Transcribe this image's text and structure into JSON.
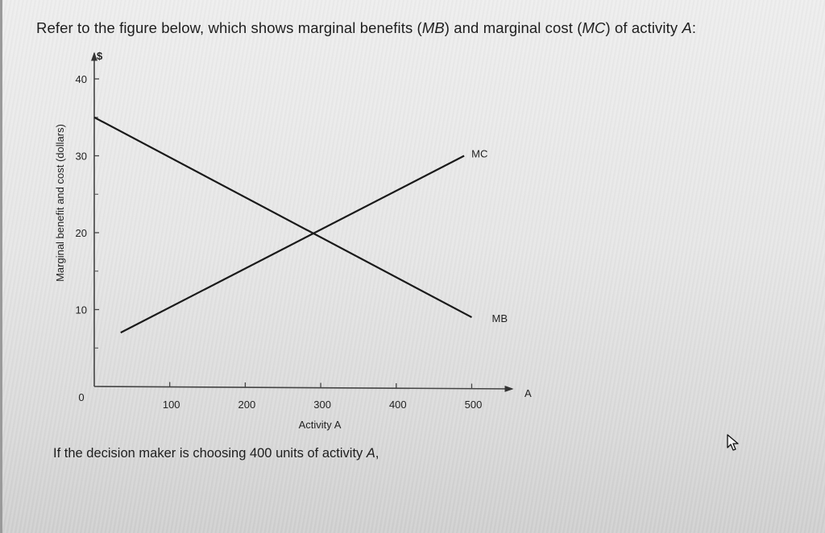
{
  "question": {
    "prefix": "Refer to the figure below, which shows marginal benefits (",
    "mb_abbr": "MB",
    "middle": ") and marginal cost (",
    "mc_abbr": "MC",
    "suffix": ") of activity ",
    "activity_var": "A",
    "end": ":"
  },
  "followup": {
    "text": "If the decision maker is choosing 400 units of activity ",
    "activity_var": "A",
    "end": ","
  },
  "chart_data": {
    "type": "line",
    "title": "",
    "xlabel": "Activity A",
    "ylabel": "Marginal benefit and cost (dollars)",
    "x_axis_end_label": "A",
    "y_axis_unit_label": "$",
    "xlim": [
      0,
      550
    ],
    "ylim": [
      0,
      42
    ],
    "x_ticks": [
      0,
      100,
      200,
      300,
      400,
      500
    ],
    "x_tick_labels": [
      "0",
      "100",
      "200",
      "300",
      "400",
      "500"
    ],
    "y_ticks": [
      10,
      20,
      30,
      40
    ],
    "y_tick_labels": [
      "10",
      "20",
      "30",
      "40"
    ],
    "y_minor_ticks": [
      5,
      15,
      25,
      35
    ],
    "grid": false,
    "legend": "inline labels at line ends",
    "series": [
      {
        "name": "MB",
        "label": "MB",
        "points": [
          [
            0,
            35
          ],
          [
            500,
            9
          ]
        ]
      },
      {
        "name": "MC",
        "label": "MC",
        "points": [
          [
            35,
            7
          ],
          [
            490,
            30
          ]
        ]
      }
    ],
    "annotations": [
      {
        "type": "intersection",
        "x": 300,
        "y": 20
      }
    ]
  },
  "ui": {
    "cursor": "arrow-pointer"
  }
}
